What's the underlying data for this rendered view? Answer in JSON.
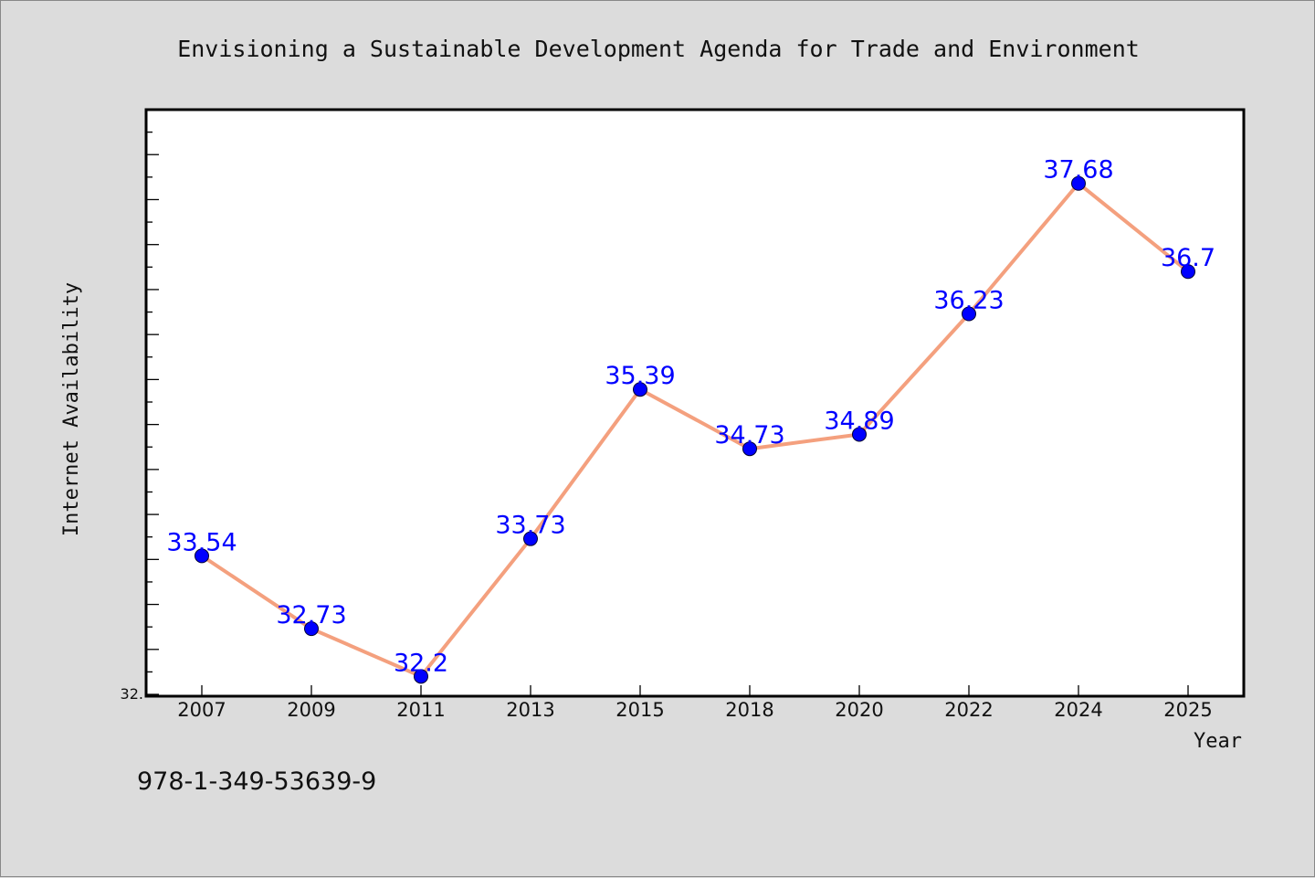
{
  "isbn": "978-1-349-53639-9",
  "colors": {
    "background": "#dcdcdc",
    "plot_background": "#ffffff",
    "line": "#f4a07e",
    "marker": "#0000ff",
    "data_label": "#0000ff",
    "text": "#111111"
  },
  "chart_data": {
    "type": "line",
    "title": "Envisioning a Sustainable Development Agenda for Trade and Environment",
    "xlabel": "Year",
    "ylabel": "Internet Availability",
    "categories": [
      "2007",
      "2009",
      "2011",
      "2013",
      "2015",
      "2018",
      "2020",
      "2022",
      "2024",
      "2025"
    ],
    "series": [
      {
        "values": [
          33.54,
          32.73,
          32.2,
          33.73,
          35.39,
          34.73,
          34.89,
          36.23,
          37.68,
          36.7
        ],
        "data_labels": [
          "33.54",
          "32.73",
          "32.2",
          "33.73",
          "35.39",
          "34.73",
          "34.89",
          "36.23",
          "37.68",
          "36.7"
        ]
      }
    ],
    "ylim": [
      31.98,
      38.5
    ],
    "y_tick_labels": [
      "32."
    ],
    "grid": false,
    "legend": "none"
  }
}
